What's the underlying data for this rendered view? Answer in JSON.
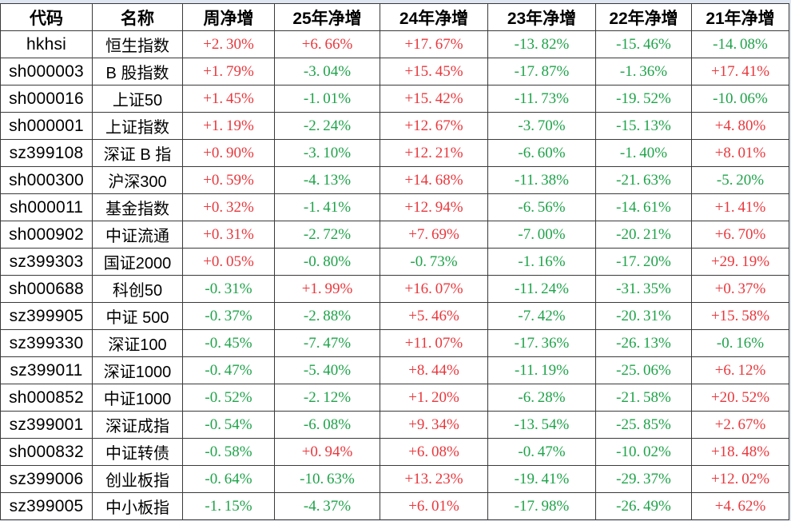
{
  "table": {
    "columns": [
      {
        "key": "code",
        "label": "代码",
        "type": "text"
      },
      {
        "key": "name",
        "label": "名称",
        "type": "text"
      },
      {
        "key": "week",
        "label": "周净增",
        "type": "pct"
      },
      {
        "key": "y25",
        "label": "25年净增",
        "type": "pct"
      },
      {
        "key": "y24",
        "label": "24年净增",
        "type": "pct"
      },
      {
        "key": "y23",
        "label": "23年净增",
        "type": "pct"
      },
      {
        "key": "y22",
        "label": "22年净增",
        "type": "pct"
      },
      {
        "key": "y21",
        "label": "21年净增",
        "type": "pct"
      }
    ],
    "rows": [
      {
        "code": "hkhsi",
        "name": "恒生指数",
        "week": "+2.30%",
        "y25": "+6.66%",
        "y24": "+17.67%",
        "y23": "-13.82%",
        "y22": "-15.46%",
        "y21": "-14.08%"
      },
      {
        "code": "sh000003",
        "name": "B 股指数",
        "week": "+1.79%",
        "y25": "-3.04%",
        "y24": "+15.45%",
        "y23": "-17.87%",
        "y22": "-1.36%",
        "y21": "+17.41%"
      },
      {
        "code": "sh000016",
        "name": "上证50",
        "week": "+1.45%",
        "y25": "-1.01%",
        "y24": "+15.42%",
        "y23": "-11.73%",
        "y22": "-19.52%",
        "y21": "-10.06%"
      },
      {
        "code": "sh000001",
        "name": "上证指数",
        "week": "+1.19%",
        "y25": "-2.24%",
        "y24": "+12.67%",
        "y23": "-3.70%",
        "y22": "-15.13%",
        "y21": "+4.80%"
      },
      {
        "code": "sz399108",
        "name": "深证 B 指",
        "week": "+0.90%",
        "y25": "-3.10%",
        "y24": "+12.21%",
        "y23": "-6.60%",
        "y22": "-1.40%",
        "y21": "+8.01%"
      },
      {
        "code": "sh000300",
        "name": "沪深300",
        "week": "+0.59%",
        "y25": "-4.13%",
        "y24": "+14.68%",
        "y23": "-11.38%",
        "y22": "-21.63%",
        "y21": "-5.20%"
      },
      {
        "code": "sh000011",
        "name": "基金指数",
        "week": "+0.32%",
        "y25": "-1.41%",
        "y24": "+12.94%",
        "y23": "-6.56%",
        "y22": "-14.61%",
        "y21": "+1.41%"
      },
      {
        "code": "sh000902",
        "name": "中证流通",
        "week": "+0.31%",
        "y25": "-2.72%",
        "y24": "+7.69%",
        "y23": "-7.00%",
        "y22": "-20.21%",
        "y21": "+6.70%"
      },
      {
        "code": "sz399303",
        "name": "国证2000",
        "week": "+0.05%",
        "y25": "-0.80%",
        "y24": "-0.73%",
        "y23": "-1.16%",
        "y22": "-17.20%",
        "y21": "+29.19%"
      },
      {
        "code": "sh000688",
        "name": "科创50",
        "week": "-0.31%",
        "y25": "+1.99%",
        "y24": "+16.07%",
        "y23": "-11.24%",
        "y22": "-31.35%",
        "y21": "+0.37%"
      },
      {
        "code": "sz399905",
        "name": "中证 500",
        "week": "-0.37%",
        "y25": "-2.88%",
        "y24": "+5.46%",
        "y23": "-7.42%",
        "y22": "-20.31%",
        "y21": "+15.58%"
      },
      {
        "code": "sz399330",
        "name": "深证100",
        "week": "-0.45%",
        "y25": "-7.47%",
        "y24": "+11.07%",
        "y23": "-17.36%",
        "y22": "-26.13%",
        "y21": "-0.16%"
      },
      {
        "code": "sz399011",
        "name": "深证1000",
        "week": "-0.47%",
        "y25": "-5.40%",
        "y24": "+8.44%",
        "y23": "-11.19%",
        "y22": "-25.06%",
        "y21": "+6.12%"
      },
      {
        "code": "sh000852",
        "name": "中证1000",
        "week": "-0.52%",
        "y25": "-2.12%",
        "y24": "+1.20%",
        "y23": "-6.28%",
        "y22": "-21.58%",
        "y21": "+20.52%"
      },
      {
        "code": "sz399001",
        "name": "深证成指",
        "week": "-0.54%",
        "y25": "-6.08%",
        "y24": "+9.34%",
        "y23": "-13.54%",
        "y22": "-25.85%",
        "y21": "+2.67%"
      },
      {
        "code": "sh000832",
        "name": "中证转债",
        "week": "-0.58%",
        "y25": "+0.94%",
        "y24": "+6.08%",
        "y23": "-0.47%",
        "y22": "-10.02%",
        "y21": "+18.48%"
      },
      {
        "code": "sz399006",
        "name": "创业板指",
        "week": "-0.64%",
        "y25": "-10.63%",
        "y24": "+13.23%",
        "y23": "-19.41%",
        "y22": "-29.37%",
        "y21": "+12.02%"
      },
      {
        "code": "sz399005",
        "name": "中小板指",
        "week": "-1.15%",
        "y25": "-4.37%",
        "y24": "+6.01%",
        "y23": "-17.98%",
        "y22": "-26.49%",
        "y21": "+4.62%"
      }
    ]
  },
  "colors": {
    "positive_red": "#e8383d",
    "negative_green": "#1fa34a",
    "header_text": "#000000",
    "grid_border": "#3a3a3a",
    "outside_cells": "#dde6f1"
  }
}
